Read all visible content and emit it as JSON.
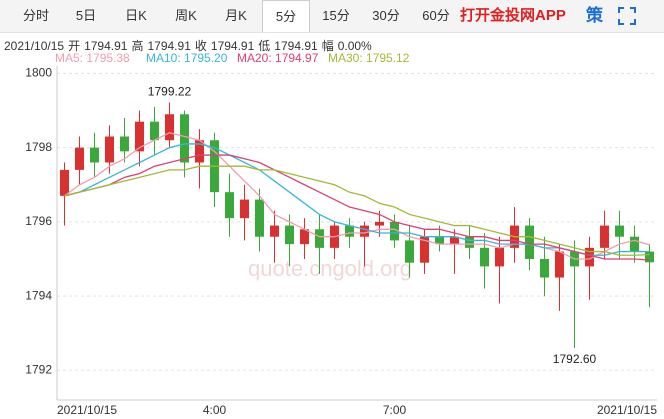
{
  "tabs": [
    {
      "label": "分时",
      "selected": false
    },
    {
      "label": "5日",
      "selected": false
    },
    {
      "label": "日K",
      "selected": false
    },
    {
      "label": "周K",
      "selected": false
    },
    {
      "label": "月K",
      "selected": false
    },
    {
      "label": "5分",
      "selected": true
    },
    {
      "label": "15分",
      "selected": false
    },
    {
      "label": "30分",
      "selected": false
    },
    {
      "label": "60分",
      "selected": false
    }
  ],
  "app_link": "打开金投网APP",
  "strategy": "策",
  "info": {
    "date": "2021/10/15",
    "items": [
      {
        "label": "开",
        "value": "1794.91"
      },
      {
        "label": "高",
        "value": "1794.91"
      },
      {
        "label": "收",
        "value": "1794.91"
      },
      {
        "label": "低",
        "value": "1794.91"
      },
      {
        "label": "幅",
        "value": "0.00%"
      }
    ]
  },
  "watermark": "quote.cngold.org",
  "chart_data": {
    "type": "candlestick",
    "categories": [
      "2021/10/15",
      null,
      null,
      null,
      null,
      null,
      null,
      null,
      null,
      null,
      "4:00",
      null,
      null,
      null,
      null,
      null,
      null,
      null,
      null,
      null,
      null,
      null,
      "7:00",
      null,
      null,
      null,
      null,
      null,
      null,
      null,
      null,
      null,
      null,
      null,
      null,
      null,
      null,
      null,
      null,
      "2021/10/15"
    ],
    "open": [
      1796.7,
      1797.4,
      1798.0,
      1797.6,
      1798.3,
      1797.9,
      1798.7,
      1798.2,
      1798.9,
      1797.6,
      1798.2,
      1796.8,
      1796.1,
      1796.6,
      1795.6,
      1795.9,
      1795.4,
      1795.8,
      1795.3,
      1795.9,
      1795.6,
      1795.9,
      1796.0,
      1795.5,
      1794.9,
      1795.6,
      1795.4,
      1795.6,
      1795.3,
      1794.8,
      1795.3,
      1795.9,
      1795.0,
      1794.5,
      1795.2,
      1794.8,
      1795.3,
      1795.9,
      1795.6,
      1795.2
    ],
    "high": [
      1797.6,
      1798.3,
      1798.4,
      1798.6,
      1798.8,
      1799.0,
      1799.1,
      1799.22,
      1799.0,
      1798.5,
      1798.4,
      1797.3,
      1797.0,
      1796.9,
      1796.3,
      1796.2,
      1796.1,
      1796.2,
      1796.0,
      1796.1,
      1796.0,
      1796.3,
      1796.2,
      1795.9,
      1795.8,
      1795.9,
      1795.8,
      1795.9,
      1795.7,
      1795.6,
      1796.4,
      1796.1,
      1795.6,
      1795.4,
      1795.5,
      1795.6,
      1796.3,
      1796.3,
      1795.9,
      1795.4
    ],
    "low": [
      1795.9,
      1797.0,
      1797.2,
      1797.3,
      1797.6,
      1797.5,
      1797.8,
      1798.0,
      1797.2,
      1796.9,
      1796.4,
      1795.6,
      1795.5,
      1795.2,
      1794.9,
      1794.8,
      1795.0,
      1794.6,
      1795.0,
      1795.3,
      1794.8,
      1795.6,
      1795.3,
      1794.5,
      1794.6,
      1795.2,
      1794.6,
      1795.0,
      1794.2,
      1793.8,
      1794.9,
      1794.7,
      1794.0,
      1793.6,
      1792.6,
      1793.9,
      1795.0,
      1795.0,
      1794.9,
      1793.7
    ],
    "close": [
      1797.4,
      1798.0,
      1797.6,
      1798.3,
      1797.9,
      1798.7,
      1798.2,
      1798.9,
      1797.6,
      1798.2,
      1796.8,
      1796.1,
      1796.6,
      1795.6,
      1795.9,
      1795.4,
      1795.8,
      1795.3,
      1795.9,
      1795.6,
      1795.9,
      1796.0,
      1795.5,
      1794.9,
      1795.6,
      1795.4,
      1795.6,
      1795.3,
      1794.8,
      1795.3,
      1795.9,
      1795.0,
      1794.5,
      1795.2,
      1794.8,
      1795.3,
      1795.9,
      1795.6,
      1795.2,
      1794.91
    ],
    "up_color": "#d8312f",
    "down_color": "#3aa83a",
    "series": [
      {
        "name": "MA5",
        "label": "MA5: 1795.38",
        "color": "#f19db0",
        "values": [
          1796.7,
          1797.0,
          1797.2,
          1797.5,
          1797.7,
          1798.0,
          1798.2,
          1798.4,
          1798.3,
          1798.2,
          1797.9,
          1797.5,
          1797.1,
          1796.7,
          1796.2,
          1796.0,
          1795.8,
          1795.6,
          1795.6,
          1795.7,
          1795.7,
          1795.8,
          1795.8,
          1795.6,
          1795.5,
          1795.4,
          1795.4,
          1795.4,
          1795.4,
          1795.3,
          1795.4,
          1795.4,
          1795.3,
          1795.2,
          1795.0,
          1795.0,
          1795.2,
          1795.4,
          1795.5,
          1795.38
        ]
      },
      {
        "name": "MA10",
        "label": "MA10: 1795.20",
        "color": "#38b6d6",
        "values": [
          1796.7,
          1796.8,
          1797.0,
          1797.2,
          1797.4,
          1797.6,
          1797.8,
          1798.0,
          1798.1,
          1798.1,
          1798.0,
          1797.8,
          1797.6,
          1797.4,
          1797.1,
          1796.8,
          1796.5,
          1796.2,
          1796.0,
          1795.9,
          1795.8,
          1795.7,
          1795.7,
          1795.7,
          1795.6,
          1795.6,
          1795.6,
          1795.5,
          1795.5,
          1795.4,
          1795.4,
          1795.4,
          1795.3,
          1795.3,
          1795.2,
          1795.1,
          1795.1,
          1795.2,
          1795.2,
          1795.2
        ]
      },
      {
        "name": "MA20",
        "label": "MA20: 1794.97",
        "color": "#dd3f78",
        "values": [
          1796.7,
          1796.8,
          1796.9,
          1797.0,
          1797.2,
          1797.3,
          1797.5,
          1797.6,
          1797.7,
          1797.8,
          1797.8,
          1797.8,
          1797.7,
          1797.6,
          1797.4,
          1797.2,
          1797.0,
          1796.8,
          1796.6,
          1796.4,
          1796.3,
          1796.2,
          1796.0,
          1795.9,
          1795.8,
          1795.8,
          1795.7,
          1795.6,
          1795.6,
          1795.5,
          1795.5,
          1795.4,
          1795.4,
          1795.3,
          1795.2,
          1795.1,
          1795.0,
          1795.0,
          1795.0,
          1794.97
        ]
      },
      {
        "name": "MA30",
        "label": "MA30: 1795.12",
        "color": "#a4b934",
        "values": [
          1796.7,
          1796.8,
          1796.9,
          1797.0,
          1797.1,
          1797.2,
          1797.3,
          1797.4,
          1797.4,
          1797.5,
          1797.5,
          1797.5,
          1797.5,
          1797.4,
          1797.4,
          1797.3,
          1797.2,
          1797.1,
          1797.0,
          1796.8,
          1796.7,
          1796.5,
          1796.4,
          1796.2,
          1796.1,
          1796.0,
          1795.9,
          1795.9,
          1795.8,
          1795.7,
          1795.6,
          1795.6,
          1795.5,
          1795.4,
          1795.3,
          1795.2,
          1795.2,
          1795.1,
          1795.1,
          1795.12
        ]
      }
    ],
    "annotations": [
      {
        "value": 1799.22,
        "label": "1799.22",
        "at": "high"
      },
      {
        "value": 1792.6,
        "label": "1792.60",
        "at": "low"
      }
    ],
    "ylim": [
      1791.2,
      1800.2
    ],
    "yticks": [
      1792,
      1794,
      1796,
      1798,
      1800
    ],
    "grid": true
  }
}
